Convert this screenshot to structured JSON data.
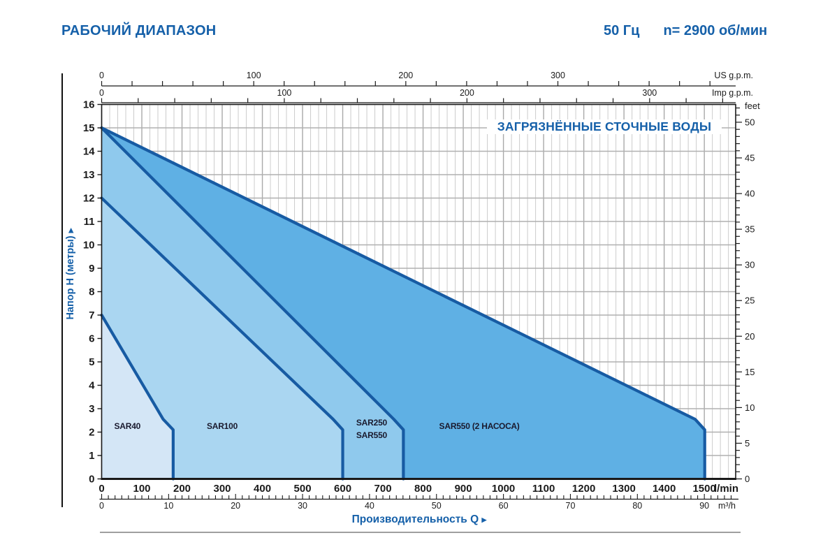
{
  "header": {
    "title": "РАБОЧИЙ ДИАПАЗОН",
    "frequency": "50 Гц",
    "speed": "n= 2900 об/мин"
  },
  "chart_data": {
    "type": "area",
    "inner_title": "ЗАГРЯЗНЁННЫЕ СТОЧНЫЕ ВОДЫ",
    "x_axis_title": "Производительность Q",
    "y_axis_title": "Напор H (метры)",
    "x_domain_lmin": [
      0,
      1578
    ],
    "y_domain_m": [
      0,
      16
    ],
    "grid": {
      "v_minor_step_lmin": 20,
      "v_major_step_lmin": 100,
      "h_step_m": 1
    },
    "regions": [
      {
        "name": "SAR40",
        "label": "SAR40",
        "fill": "#d4e6f6",
        "h_at_q0": 7,
        "q_end": 178,
        "outline_qh": [
          [
            0,
            7
          ],
          [
            153,
            2.55
          ],
          [
            178,
            2.1
          ],
          [
            178,
            0
          ]
        ],
        "label_qh": [
          64,
          2.25
        ]
      },
      {
        "name": "SAR100",
        "label": "SAR100",
        "fill": "#aad6f1",
        "h_at_q0": 12,
        "q_end": 600,
        "outline_qh": [
          [
            0,
            12
          ],
          [
            576,
            2.55
          ],
          [
            600,
            2.1
          ],
          [
            600,
            0
          ]
        ],
        "label_qh": [
          300,
          2.25
        ]
      },
      {
        "name": "SAR250-SAR550",
        "label": "SAR250\nSAR550",
        "fill": "#8fc9ed",
        "h_at_q0": 15,
        "q_end": 751,
        "outline_qh": [
          [
            0,
            15
          ],
          [
            727,
            2.55
          ],
          [
            751,
            2.1
          ],
          [
            751,
            0
          ]
        ],
        "label_qh": [
          672,
          2.25
        ]
      },
      {
        "name": "SAR550-2-pumps",
        "label": "SAR550 (2 НАСОСА)",
        "fill": "#5fb0e4",
        "h_at_q0": 15,
        "q_end": 1501,
        "outline_qh": [
          [
            0,
            15
          ],
          [
            1477,
            2.55
          ],
          [
            1501,
            2.1
          ],
          [
            1501,
            0
          ]
        ],
        "label_qh": [
          940,
          2.25
        ]
      }
    ],
    "axes": {
      "left_meters": {
        "min": 0,
        "max": 16,
        "step": 1
      },
      "right_feet": {
        "unit": "feet",
        "max_tick": 52,
        "label_step": 5,
        "minor_step": 1,
        "m_per_unit": 0.3048
      },
      "bottom_lmin": {
        "unit": "l/min",
        "label_max": 1500,
        "label_step": 100
      },
      "bottom_m3h": {
        "unit": "m³/h",
        "max_tick": 94,
        "label_step": 10,
        "minor_step": 1,
        "lmin_per_unit": 16.667
      },
      "top_us_gpm": {
        "unit": "US g.p.m.",
        "tick_max": 400,
        "label_max": 300,
        "label_step": 100,
        "minor_step": 20,
        "lmin_per_unit": 3.785
      },
      "top_imp_gpm": {
        "unit": "Imp g.p.m.",
        "tick_max": 340,
        "label_max": 300,
        "label_step": 100,
        "minor_step": 20,
        "lmin_per_unit": 4.546
      }
    },
    "colors": {
      "boundary": "#175ba3",
      "grid_minor": "#cccccc",
      "grid_major": "#a9a9a9",
      "grid_h": "#b0b0b0",
      "axis": "#1a1a1a",
      "blue_text": "#1560a9",
      "region_label": "#1a1a2e"
    }
  }
}
